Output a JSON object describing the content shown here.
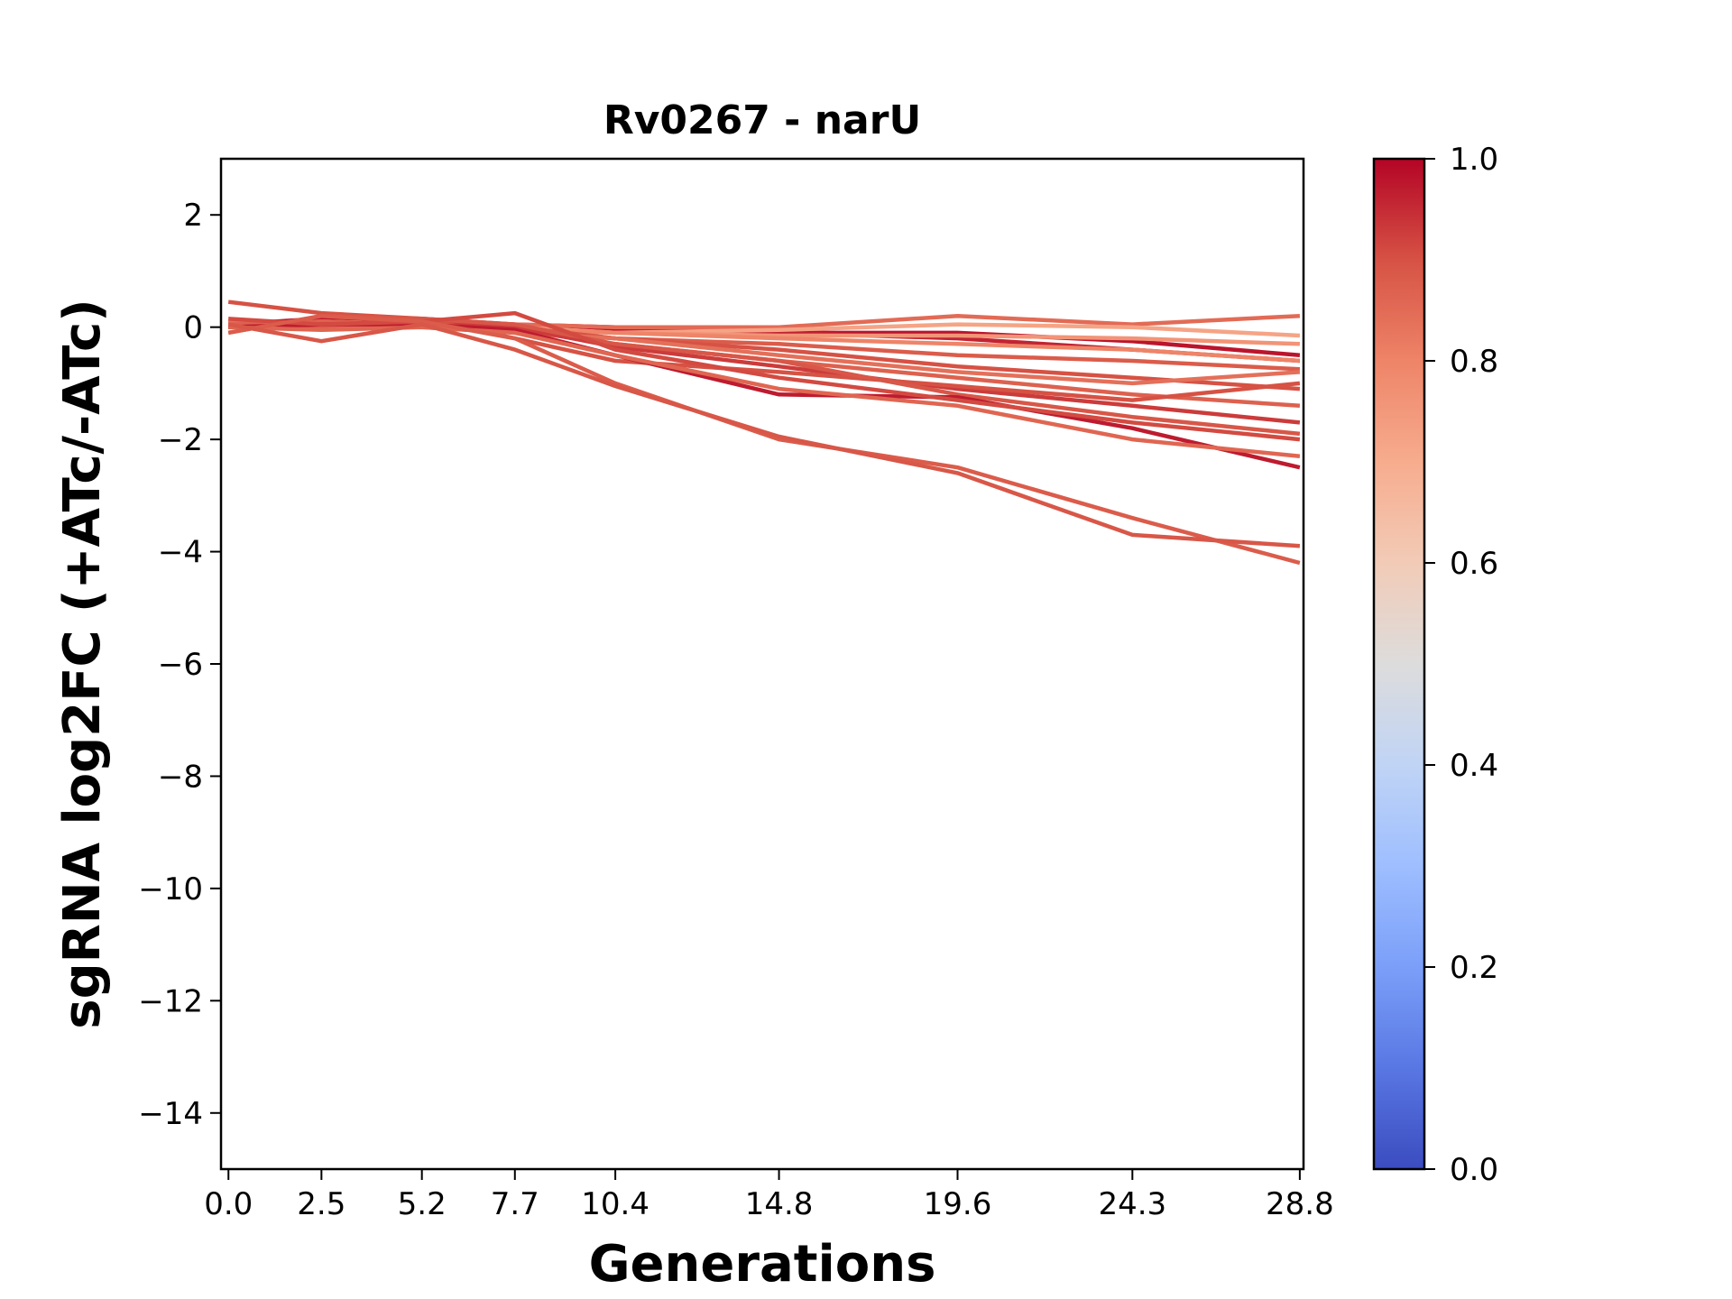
{
  "chart_data": {
    "type": "line",
    "title": "Rv0267 - narU",
    "xlabel": "Generations",
    "ylabel": "sgRNA log2FC (+ATc/-ATc)",
    "x": [
      0.0,
      2.5,
      5.2,
      7.7,
      10.4,
      14.8,
      19.6,
      24.3,
      28.8
    ],
    "x_tick_labels": [
      "0.0",
      "2.5",
      "5.2",
      "7.7",
      "10.4",
      "14.8",
      "19.6",
      "24.3",
      "28.8"
    ],
    "xlim": [
      -0.2,
      28.9
    ],
    "ylim": [
      -15,
      3
    ],
    "y_ticks": [
      2,
      0,
      -2,
      -4,
      -6,
      -8,
      -10,
      -12,
      -14
    ],
    "y_tick_labels": [
      "2",
      "0",
      "−2",
      "−4",
      "−6",
      "−8",
      "−10",
      "−12",
      "−14"
    ],
    "colorbar": {
      "colormap": "coolwarm",
      "range": [
        0.0,
        1.0
      ],
      "ticks": [
        0.0,
        0.2,
        0.4,
        0.6,
        0.8,
        1.0
      ],
      "tick_labels": [
        "0.0",
        "0.2",
        "0.4",
        "0.6",
        "0.8",
        "1.0"
      ]
    },
    "series": [
      {
        "values": [
          0.05,
          0.15,
          0.1,
          0.0,
          -0.05,
          -0.1,
          -0.1,
          -0.25,
          -0.5
        ],
        "color_value": 0.98
      },
      {
        "values": [
          0.0,
          0.1,
          0.15,
          0.05,
          0.0,
          -0.1,
          -0.2,
          -0.4,
          -0.6
        ],
        "color_value": 0.96
      },
      {
        "values": [
          0.1,
          0.05,
          0.1,
          0.05,
          0.0,
          0.0,
          0.2,
          0.05,
          0.2
        ],
        "color_value": 0.85
      },
      {
        "values": [
          0.0,
          0.1,
          0.05,
          0.0,
          -0.1,
          -0.05,
          0.05,
          0.0,
          -0.15
        ],
        "color_value": 0.72
      },
      {
        "values": [
          0.1,
          0.05,
          0.1,
          0.0,
          -0.1,
          -0.15,
          -0.15,
          -0.2,
          -0.3
        ],
        "color_value": 0.76
      },
      {
        "values": [
          0.0,
          0.1,
          0.05,
          -0.05,
          -0.1,
          -0.2,
          -0.3,
          -0.4,
          -0.6
        ],
        "color_value": 0.8
      },
      {
        "values": [
          0.05,
          0.0,
          0.1,
          0.0,
          -0.2,
          -0.3,
          -0.5,
          -0.6,
          -0.75
        ],
        "color_value": 0.88
      },
      {
        "values": [
          0.0,
          0.05,
          0.1,
          0.0,
          -0.2,
          -0.4,
          -0.7,
          -0.9,
          -1.1
        ],
        "color_value": 0.9
      },
      {
        "values": [
          0.1,
          0.05,
          0.0,
          -0.1,
          -0.2,
          -0.5,
          -0.8,
          -1.0,
          -0.8
        ],
        "color_value": 0.84
      },
      {
        "values": [
          0.05,
          0.1,
          0.05,
          -0.05,
          -0.3,
          -0.6,
          -0.9,
          -1.2,
          -1.4
        ],
        "color_value": 0.87
      },
      {
        "values": [
          0.0,
          0.05,
          0.1,
          0.0,
          -0.35,
          -0.7,
          -1.1,
          -1.4,
          -1.7
        ],
        "color_value": 0.93
      },
      {
        "values": [
          0.45,
          0.25,
          0.15,
          -0.2,
          -0.6,
          -0.8,
          -1.05,
          -1.3,
          -1.0
        ],
        "color_value": 0.9
      },
      {
        "values": [
          -0.1,
          0.2,
          0.15,
          0.05,
          -0.3,
          -0.6,
          -1.2,
          -1.6,
          -1.9
        ],
        "color_value": 0.89
      },
      {
        "values": [
          0.0,
          0.05,
          0.05,
          -0.05,
          -0.5,
          -1.2,
          -1.25,
          -1.8,
          -2.5
        ],
        "color_value": 0.97
      },
      {
        "values": [
          0.0,
          -0.05,
          0.0,
          -0.1,
          -0.5,
          -1.1,
          -1.4,
          -2.0,
          -2.3
        ],
        "color_value": 0.86
      },
      {
        "values": [
          0.15,
          0.05,
          0.1,
          0.25,
          -0.4,
          -0.9,
          -1.3,
          -1.7,
          -2.0
        ],
        "color_value": 0.91
      },
      {
        "values": [
          -0.1,
          0.2,
          0.1,
          -0.2,
          -1.0,
          -2.0,
          -2.5,
          -3.4,
          -4.2
        ],
        "color_value": 0.88
      },
      {
        "values": [
          0.05,
          -0.25,
          0.05,
          -0.4,
          -1.05,
          -1.95,
          -2.6,
          -3.7,
          -3.9
        ],
        "color_value": 0.89
      }
    ]
  }
}
